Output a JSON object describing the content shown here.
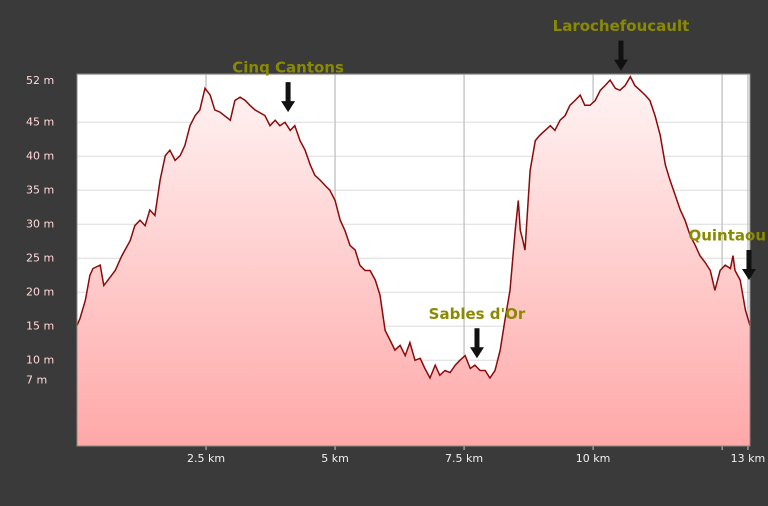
{
  "chart_data": {
    "type": "area",
    "x": [
      0.0,
      0.06,
      0.16,
      0.25,
      0.31,
      0.45,
      0.52,
      0.6,
      0.74,
      0.87,
      1.03,
      1.12,
      1.22,
      1.32,
      1.41,
      1.51,
      1.61,
      1.71,
      1.8,
      1.9,
      2.0,
      2.09,
      2.19,
      2.29,
      2.38,
      2.48,
      2.58,
      2.67,
      2.77,
      2.97,
      3.06,
      3.16,
      3.26,
      3.35,
      3.45,
      3.64,
      3.74,
      3.84,
      3.93,
      4.03,
      4.13,
      4.22,
      4.32,
      4.42,
      4.52,
      4.61,
      4.71,
      4.81,
      4.9,
      5.0,
      5.1,
      5.19,
      5.29,
      5.39,
      5.48,
      5.58,
      5.68,
      5.78,
      5.87,
      5.97,
      6.07,
      6.16,
      6.26,
      6.36,
      6.45,
      6.55,
      6.65,
      6.74,
      6.84,
      6.94,
      7.03,
      7.13,
      7.23,
      7.33,
      7.42,
      7.52,
      7.62,
      7.71,
      7.81,
      7.91,
      8.0,
      8.1,
      8.2,
      8.29,
      8.39,
      8.49,
      8.55,
      8.59,
      8.64,
      8.68,
      8.78,
      8.88,
      8.97,
      9.07,
      9.17,
      9.26,
      9.36,
      9.46,
      9.55,
      9.65,
      9.75,
      9.84,
      9.94,
      10.04,
      10.14,
      10.23,
      10.33,
      10.43,
      10.52,
      10.62,
      10.72,
      10.81,
      10.91,
      11.01,
      11.1,
      11.2,
      11.3,
      11.4,
      11.49,
      11.59,
      11.69,
      11.78,
      11.88,
      11.98,
      12.07,
      12.17,
      12.27,
      12.36,
      12.46,
      12.56,
      12.66,
      12.71,
      12.75,
      12.85,
      12.95,
      13.04
    ],
    "values": [
      15.1,
      16.2,
      18.8,
      22.5,
      23.5,
      24.0,
      21.0,
      21.8,
      23.2,
      25.4,
      27.6,
      29.8,
      30.6,
      29.8,
      32.1,
      31.3,
      36.5,
      40.1,
      40.9,
      39.4,
      40.1,
      41.6,
      44.5,
      46.0,
      46.8,
      50.0,
      49.0,
      46.8,
      46.5,
      45.3,
      48.2,
      48.7,
      48.2,
      47.5,
      46.8,
      46.0,
      44.5,
      45.3,
      44.5,
      45.0,
      43.8,
      44.5,
      42.3,
      40.9,
      38.7,
      37.2,
      36.5,
      35.7,
      35.0,
      33.5,
      30.6,
      29.1,
      26.9,
      26.2,
      24.0,
      23.2,
      23.2,
      21.8,
      19.6,
      14.4,
      12.9,
      11.5,
      12.2,
      10.7,
      12.6,
      10.0,
      10.3,
      8.8,
      7.4,
      9.3,
      7.8,
      8.5,
      8.2,
      9.3,
      10.0,
      10.7,
      8.8,
      9.3,
      8.5,
      8.5,
      7.4,
      8.5,
      11.5,
      15.9,
      20.3,
      29.1,
      33.5,
      29.1,
      27.6,
      26.2,
      37.9,
      42.3,
      43.1,
      43.8,
      44.5,
      43.8,
      45.3,
      46.0,
      47.5,
      48.2,
      49.0,
      47.5,
      47.5,
      48.2,
      49.7,
      50.4,
      51.2,
      50.0,
      49.7,
      50.4,
      51.7,
      50.4,
      49.7,
      49.0,
      48.2,
      46.0,
      43.1,
      38.7,
      36.5,
      34.3,
      32.1,
      30.6,
      28.4,
      26.9,
      25.4,
      24.4,
      23.2,
      20.3,
      23.2,
      24.0,
      23.5,
      25.4,
      23.2,
      21.8,
      17.4,
      15.1
    ],
    "color": "#8b0a0a",
    "xlim": [
      0,
      13.04
    ],
    "ylim": [
      -2.6,
      52.1
    ],
    "xticks": [
      {
        "value": 2.5,
        "label": "2.5 km"
      },
      {
        "value": 5,
        "label": "5 km"
      },
      {
        "value": 7.5,
        "label": "7.5 km"
      },
      {
        "value": 10,
        "label": "10 km"
      },
      {
        "value": 12.5,
        "label": null
      },
      {
        "value": 13,
        "label": "13 km"
      }
    ],
    "yticks": [
      {
        "value": 7,
        "label": "7 m"
      },
      {
        "value": 10,
        "label": "10 m"
      },
      {
        "value": 15,
        "label": "15 m"
      },
      {
        "value": 20,
        "label": "20 m"
      },
      {
        "value": 25,
        "label": "25 m"
      },
      {
        "value": 30,
        "label": "30 m"
      },
      {
        "value": 35,
        "label": "35 m"
      },
      {
        "value": 40,
        "label": "40 m"
      },
      {
        "value": 45,
        "label": "45 m"
      },
      {
        "value": 52,
        "label": "52 m"
      }
    ],
    "grid": true,
    "annotations": [
      {
        "text": "Cinq Cantons",
        "x": 4.09,
        "y": 46.5
      },
      {
        "text": "Larochefoucault",
        "x": 10.54,
        "y": 52.6
      },
      {
        "text": "Sables d'Or",
        "x": 7.75,
        "y": 10.3
      },
      {
        "text": "Quintaou",
        "x": 13.02,
        "y": 21.8
      }
    ]
  }
}
